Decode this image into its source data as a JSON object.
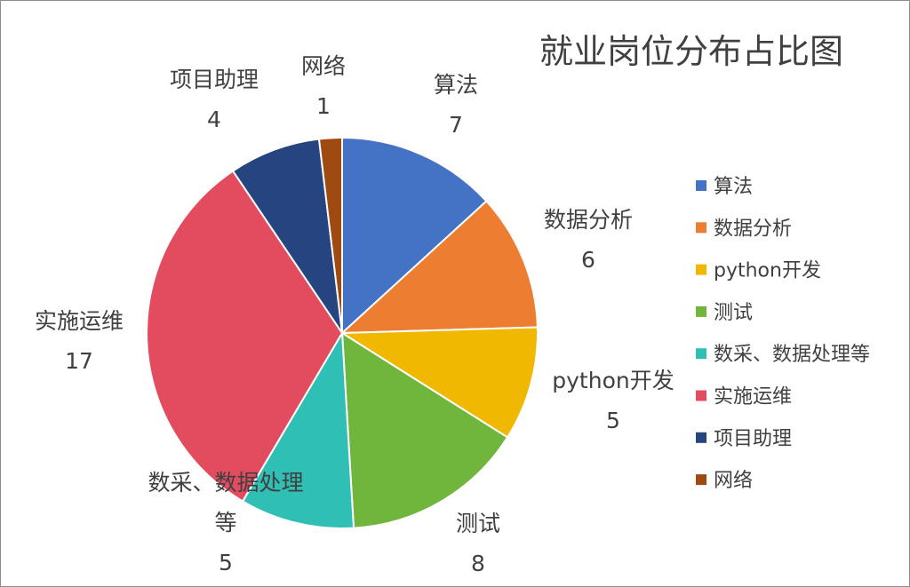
{
  "chart_data": {
    "type": "pie",
    "title": "就业岗位分布占比图",
    "categories": [
      "算法",
      "数据分析",
      "python开发",
      "测试",
      "数采、数据处理等",
      "实施运维",
      "项目助理",
      "网络"
    ],
    "values": [
      7,
      6,
      5,
      8,
      5,
      17,
      4,
      1
    ],
    "colors": [
      "#4472c4",
      "#ed7d31",
      "#f0b800",
      "#70b53c",
      "#2fbfb4",
      "#e34c5f",
      "#254480",
      "#9e4a10"
    ],
    "data_labels": [
      [
        "算法"
      ],
      [
        "数据分析"
      ],
      [
        "python开发"
      ],
      [
        "测试"
      ],
      [
        "数采、数据处理",
        "等"
      ],
      [
        "实施运维"
      ],
      [
        "项目助理"
      ],
      [
        "网络"
      ]
    ],
    "legend_position": "right"
  }
}
